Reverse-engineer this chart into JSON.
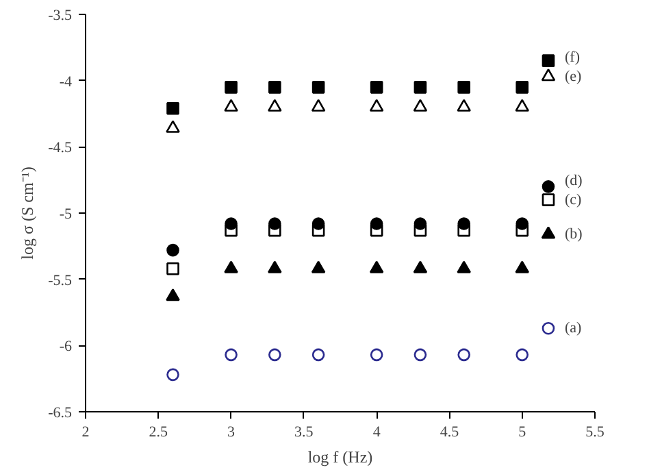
{
  "chart_data": {
    "type": "scatter",
    "xlabel": "log f (Hz)",
    "ylabel": "log σ (S cm⁻¹)",
    "x": [
      2.6,
      3,
      3.3,
      3.6,
      4,
      4.3,
      4.6,
      5,
      5.18
    ],
    "series": [
      {
        "name": "(a)",
        "color": "#2b2b8f",
        "marker": "circle_open",
        "values": [
          -6.22,
          -6.07,
          -6.07,
          -6.07,
          -6.07,
          -6.07,
          -6.07,
          -6.07,
          -5.87
        ]
      },
      {
        "name": "(b)",
        "color": "#000000",
        "marker": "triangle",
        "values": [
          -5.63,
          -5.42,
          -5.42,
          -5.42,
          -5.42,
          -5.42,
          -5.42,
          -5.42,
          -5.16
        ]
      },
      {
        "name": "(c)",
        "color": "#000000",
        "marker": "square_open",
        "values": [
          -5.42,
          -5.13,
          -5.13,
          -5.13,
          -5.13,
          -5.13,
          -5.13,
          -5.13,
          -4.9
        ]
      },
      {
        "name": "(d)",
        "color": "#000000",
        "marker": "circle",
        "values": [
          -5.28,
          -5.08,
          -5.08,
          -5.08,
          -5.08,
          -5.08,
          -5.08,
          -5.08,
          -4.8
        ]
      },
      {
        "name": "(e)",
        "color": "#000000",
        "marker": "triangle_open",
        "values": [
          -4.36,
          -4.2,
          -4.2,
          -4.2,
          -4.2,
          -4.2,
          -4.2,
          -4.2,
          -3.97
        ]
      },
      {
        "name": "(f)",
        "color": "#000000",
        "marker": "square",
        "values": [
          -4.21,
          -4.05,
          -4.05,
          -4.05,
          -4.05,
          -4.05,
          -4.05,
          -4.05,
          -3.85
        ]
      }
    ],
    "xlim": [
      2,
      5.5
    ],
    "ylim": [
      -6.5,
      -3.5
    ],
    "xticks": [
      2,
      2.5,
      3,
      3.5,
      4,
      4.5,
      5,
      5.5
    ],
    "yticks": [
      -6.5,
      -6,
      -5.5,
      -5,
      -4.5,
      -4,
      -3.5
    ],
    "grid": false
  }
}
